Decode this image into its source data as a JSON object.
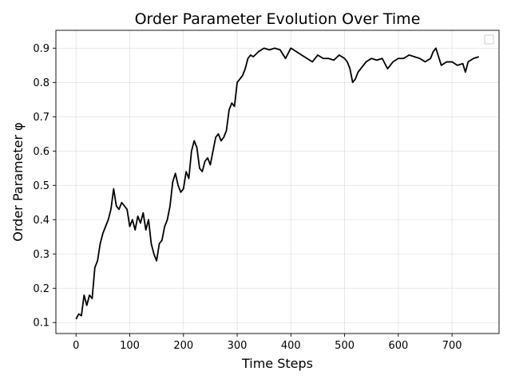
{
  "chart_data": {
    "type": "line",
    "title": "Order Parameter Evolution Over Time",
    "xlabel": "Time Steps",
    "ylabel": "Order Parameter φ",
    "xlim": [
      -37.5,
      787.5
    ],
    "ylim": [
      0.068,
      0.952
    ],
    "xticks": [
      0,
      100,
      200,
      300,
      400,
      500,
      600,
      700
    ],
    "yticks": [
      0.1,
      0.2,
      0.3,
      0.4,
      0.5,
      0.6,
      0.7,
      0.8,
      0.9
    ],
    "grid": true,
    "legend": {
      "position": "top-right",
      "entries": []
    },
    "series": [
      {
        "color": "#000000",
        "x": [
          0,
          5,
          10,
          15,
          20,
          25,
          30,
          35,
          40,
          45,
          50,
          55,
          60,
          65,
          70,
          75,
          80,
          85,
          90,
          95,
          100,
          105,
          110,
          115,
          120,
          125,
          130,
          135,
          140,
          145,
          150,
          155,
          160,
          165,
          170,
          175,
          180,
          185,
          190,
          195,
          200,
          205,
          210,
          215,
          220,
          225,
          230,
          235,
          240,
          245,
          250,
          255,
          260,
          265,
          270,
          275,
          280,
          285,
          290,
          295,
          300,
          305,
          310,
          315,
          320,
          325,
          330,
          340,
          350,
          360,
          370,
          380,
          390,
          400,
          410,
          420,
          430,
          440,
          450,
          460,
          470,
          480,
          490,
          500,
          505,
          510,
          515,
          520,
          525,
          530,
          540,
          550,
          560,
          570,
          580,
          590,
          600,
          610,
          620,
          630,
          640,
          650,
          660,
          665,
          670,
          680,
          690,
          700,
          710,
          720,
          725,
          730,
          740,
          750
        ],
        "y": [
          0.11,
          0.125,
          0.12,
          0.18,
          0.15,
          0.18,
          0.17,
          0.26,
          0.28,
          0.33,
          0.36,
          0.38,
          0.4,
          0.43,
          0.49,
          0.44,
          0.43,
          0.45,
          0.44,
          0.43,
          0.38,
          0.4,
          0.37,
          0.41,
          0.39,
          0.42,
          0.37,
          0.4,
          0.33,
          0.3,
          0.28,
          0.33,
          0.34,
          0.38,
          0.4,
          0.44,
          0.51,
          0.535,
          0.5,
          0.48,
          0.49,
          0.54,
          0.52,
          0.6,
          0.63,
          0.61,
          0.55,
          0.54,
          0.57,
          0.58,
          0.56,
          0.6,
          0.64,
          0.65,
          0.63,
          0.64,
          0.66,
          0.72,
          0.74,
          0.73,
          0.8,
          0.81,
          0.82,
          0.84,
          0.87,
          0.88,
          0.875,
          0.89,
          0.9,
          0.895,
          0.9,
          0.895,
          0.87,
          0.9,
          0.89,
          0.88,
          0.87,
          0.86,
          0.88,
          0.87,
          0.87,
          0.865,
          0.88,
          0.87,
          0.86,
          0.84,
          0.8,
          0.81,
          0.83,
          0.84,
          0.86,
          0.87,
          0.865,
          0.87,
          0.84,
          0.86,
          0.87,
          0.87,
          0.88,
          0.875,
          0.87,
          0.86,
          0.87,
          0.89,
          0.9,
          0.85,
          0.86,
          0.86,
          0.85,
          0.855,
          0.83,
          0.86,
          0.87,
          0.875
        ]
      }
    ]
  }
}
